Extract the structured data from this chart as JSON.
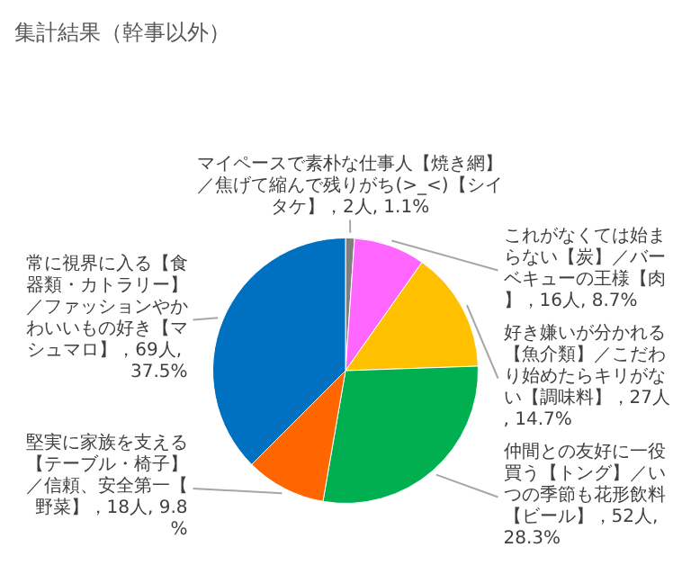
{
  "chart_data": {
    "type": "pie",
    "title": "集計結果（幹事以外）",
    "categories": [
      "マイペースで素朴な仕事人【焼き網】／焦げて縮んで残りがち(>_<)【シイタケ】",
      "これがなくては始まらない【炭】／バーベキューの王様【肉】",
      "好き嫌いが分かれる【魚介類】／こだわり始めたらキリがない【調味料】",
      "仲間との友好に一役買う【トング】／いつの季節も花形飲料【ビール】",
      "堅実に家族を支える【テーブル・椅子】／信頼、安全第一【野菜】",
      "常に視界に入る【食器類・カトラリー】／ファッションやかわいいもの好き【マシュマロ】"
    ],
    "values": [
      2,
      16,
      27,
      52,
      18,
      69
    ],
    "value_labels": [
      "，2人, 1.1%",
      "，16人, 8.7%",
      "，27人, 14.7%",
      "，52人, 28.3%",
      "，18人, 9.8%",
      "，69人, 37.5%"
    ],
    "colors": [
      "#7f7f7f",
      "#ff66ff",
      "#ffc000",
      "#00b050",
      "#ff6600",
      "#0070c0"
    ],
    "legend": false
  }
}
